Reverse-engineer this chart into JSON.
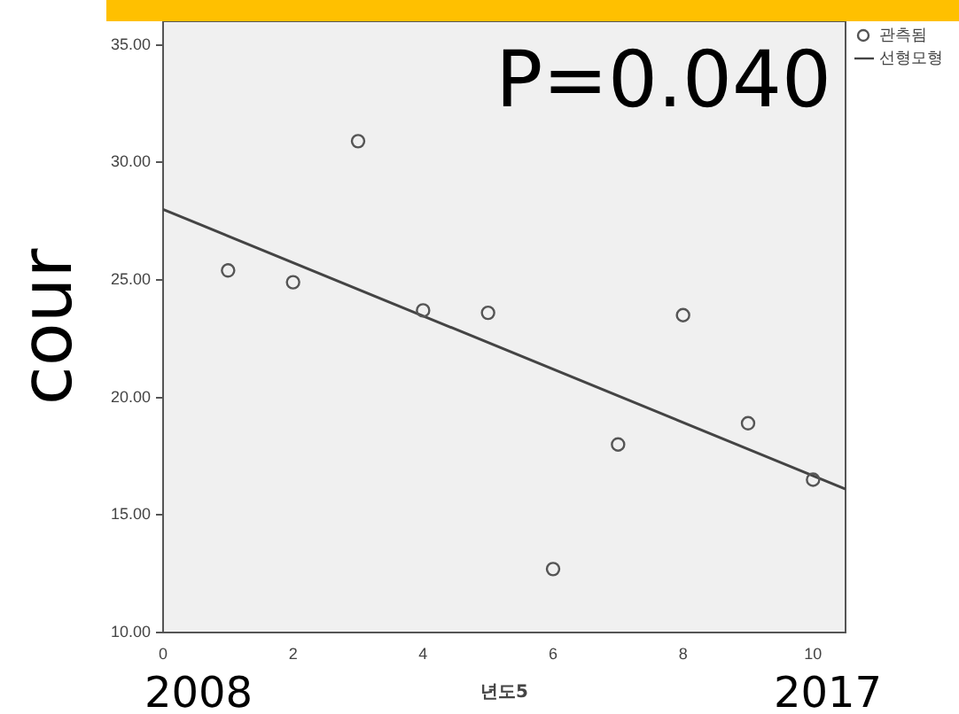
{
  "chart_data": {
    "type": "scatter",
    "ylabel": "cour",
    "xlabel": "년도5",
    "x": [
      1,
      2,
      3,
      4,
      5,
      6,
      7,
      8,
      9,
      10
    ],
    "series": [
      {
        "name": "관측됨",
        "color": "#555555",
        "values": [
          25.4,
          24.9,
          30.9,
          23.7,
          23.6,
          12.7,
          18.0,
          23.5,
          18.9,
          16.5
        ],
        "marker": "circle"
      },
      {
        "name": "선형모형",
        "type": "line",
        "color": "#444444",
        "x": [
          0,
          10.5
        ],
        "values": [
          28.0,
          16.1
        ],
        "marker": "none"
      }
    ],
    "xlim": [
      0,
      10.5
    ],
    "xticks": [
      0,
      2,
      4,
      6,
      8,
      10
    ],
    "ylim": [
      10,
      36
    ],
    "yticks": [
      {
        "value": 10,
        "label": "10.00"
      },
      {
        "value": 15,
        "label": "15.00"
      },
      {
        "value": 20,
        "label": "20.00"
      },
      {
        "value": 25,
        "label": "25.00"
      },
      {
        "value": 30,
        "label": "30.00"
      },
      {
        "value": 35,
        "label": "35.00"
      }
    ],
    "grid": false,
    "legend": "top right",
    "annotations": [
      "P=0.040",
      "2008",
      "2017"
    ]
  }
}
